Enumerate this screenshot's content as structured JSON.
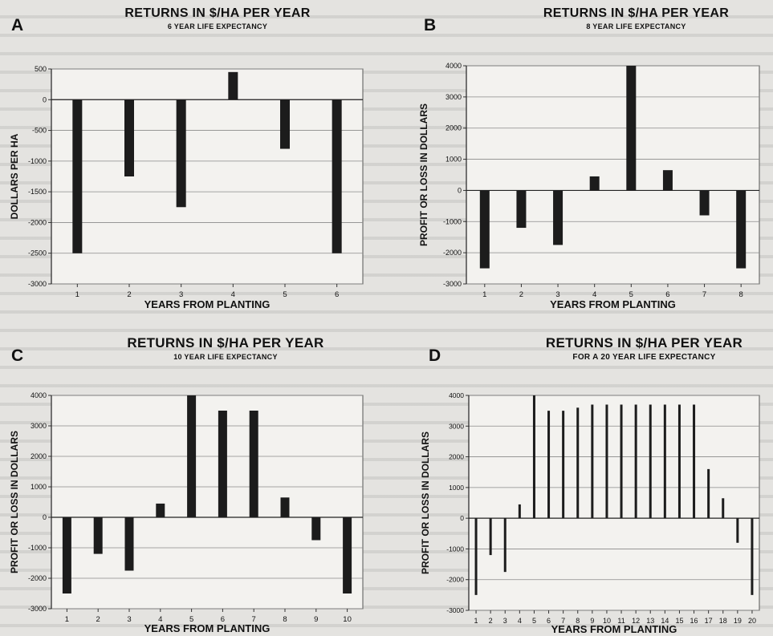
{
  "chart_data": [
    {
      "panel": "A",
      "type": "bar",
      "title": "RETURNS IN $/HA PER YEAR",
      "subtitle": "6 YEAR LIFE EXPECTANCY",
      "xlabel": "YEARS FROM PLANTING",
      "ylabel": "DOLLARS PER HA",
      "categories": [
        "1",
        "2",
        "3",
        "4",
        "5",
        "6"
      ],
      "values": [
        -2500,
        -1250,
        -1750,
        450,
        -800,
        -2500
      ],
      "ylim": [
        -3000,
        500
      ],
      "yticks": [
        "500",
        "0",
        "-500",
        "-1000",
        "-1500",
        "-2000",
        "-2500",
        "-3000"
      ],
      "grid": true
    },
    {
      "panel": "B",
      "type": "bar",
      "title": "RETURNS IN $/HA PER YEAR",
      "subtitle": "8 YEAR LIFE EXPECTANCY",
      "xlabel": "YEARS FROM PLANTING",
      "ylabel": "PROFIT OR LOSS IN DOLLARS",
      "categories": [
        "1",
        "2",
        "3",
        "4",
        "5",
        "6",
        "7",
        "8"
      ],
      "values": [
        -2500,
        -1200,
        -1750,
        450,
        4000,
        650,
        -800,
        -2500
      ],
      "ylim": [
        -3000,
        4000
      ],
      "yticks": [
        "4000",
        "3000",
        "2000",
        "1000",
        "0",
        "-1000",
        "-2000",
        "-3000"
      ],
      "grid": true
    },
    {
      "panel": "C",
      "type": "bar",
      "title": "RETURNS IN $/HA PER YEAR",
      "subtitle": "10 YEAR LIFE EXPECTANCY",
      "xlabel": "YEARS FROM PLANTING",
      "ylabel": "PROFIT OR LOSS IN DOLLARS",
      "categories": [
        "1",
        "2",
        "3",
        "4",
        "5",
        "6",
        "7",
        "8",
        "9",
        "10"
      ],
      "values": [
        -2500,
        -1200,
        -1750,
        450,
        4000,
        3500,
        3500,
        650,
        -750,
        -2500
      ],
      "ylim": [
        -3000,
        4000
      ],
      "yticks": [
        "4000",
        "3000",
        "2000",
        "1000",
        "0",
        "-1000",
        "-2000",
        "-3000"
      ],
      "grid": true
    },
    {
      "panel": "D",
      "type": "bar",
      "title": "RETURNS IN $/HA PER YEAR",
      "subtitle": "FOR A 20 YEAR LIFE EXPECTANCY",
      "xlabel": "YEARS FROM PLANTING",
      "ylabel": "PROFIT OR LOSS IN DOLLARS",
      "categories": [
        "1",
        "2",
        "3",
        "4",
        "5",
        "6",
        "7",
        "8",
        "9",
        "10",
        "11",
        "12",
        "13",
        "14",
        "15",
        "16",
        "17",
        "18",
        "19",
        "20"
      ],
      "values": [
        -2500,
        -1200,
        -1750,
        450,
        4000,
        3500,
        3500,
        3600,
        3700,
        3700,
        3700,
        3700,
        3700,
        3700,
        3700,
        3700,
        1600,
        650,
        -800,
        -2500
      ],
      "ylim": [
        -3000,
        4000
      ],
      "yticks": [
        "4000",
        "3000",
        "2000",
        "1000",
        "0",
        "-1000",
        "-2000",
        "-3000"
      ],
      "grid": true
    }
  ]
}
